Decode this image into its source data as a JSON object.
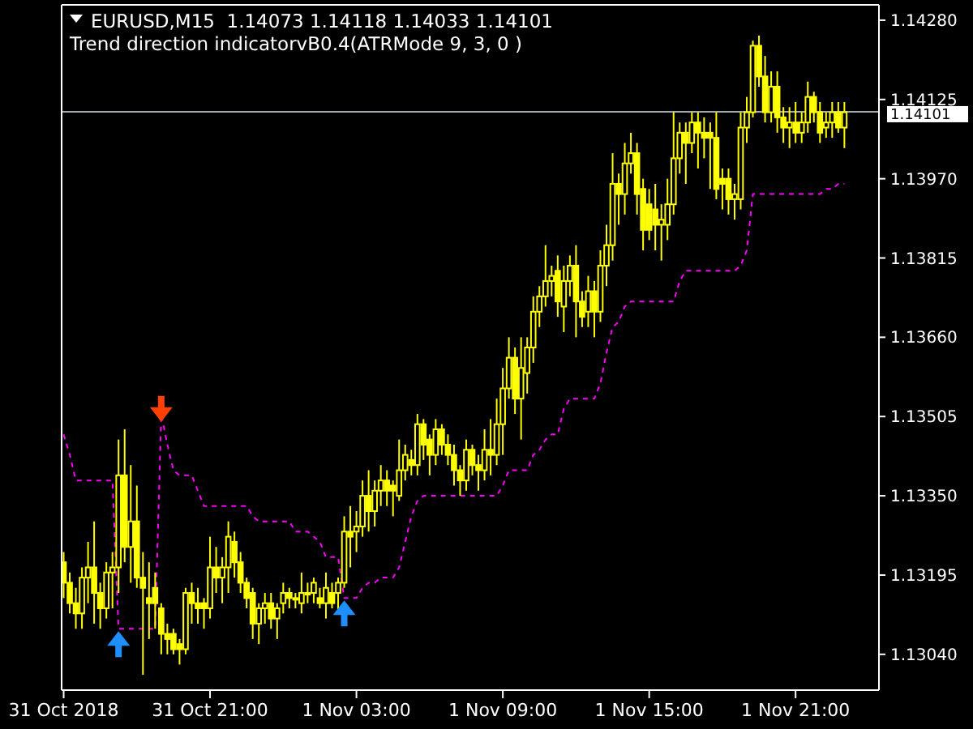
{
  "chart_data": {
    "type": "candlestick",
    "title": "EURUSD,M15  1.14073 1.14118 1.14033 1.14101",
    "subtitle": "Trend direction indicatorvB0.4(ATRMode 9, 3, 0 )",
    "color": "#ffff00",
    "x": [
      "2018-10-31T15:00",
      "2018-10-31T15:15",
      "2018-10-31T15:30",
      "2018-10-31T15:45",
      "2018-10-31T16:00",
      "2018-10-31T16:15",
      "2018-10-31T16:30",
      "2018-10-31T16:45",
      "2018-10-31T17:00",
      "2018-10-31T17:15",
      "2018-10-31T17:30",
      "2018-10-31T17:45",
      "2018-10-31T18:00",
      "2018-10-31T18:15",
      "2018-10-31T18:30",
      "2018-10-31T18:45",
      "2018-10-31T19:00",
      "2018-10-31T19:15",
      "2018-10-31T19:30",
      "2018-10-31T19:45",
      "2018-10-31T20:00",
      "2018-10-31T20:15",
      "2018-10-31T20:30",
      "2018-10-31T20:45",
      "2018-10-31T21:00",
      "2018-10-31T21:15",
      "2018-10-31T21:30",
      "2018-10-31T21:45",
      "2018-10-31T22:00",
      "2018-10-31T22:15",
      "2018-10-31T22:30",
      "2018-10-31T22:45",
      "2018-10-31T23:00",
      "2018-10-31T23:15",
      "2018-10-31T23:30",
      "2018-10-31T23:45",
      "2018-11-01T00:00",
      "2018-11-01T00:15",
      "2018-11-01T00:30",
      "2018-11-01T00:45",
      "2018-11-01T01:00",
      "2018-11-01T01:15",
      "2018-11-01T01:30",
      "2018-11-01T01:45",
      "2018-11-01T02:00",
      "2018-11-01T02:15",
      "2018-11-01T02:30",
      "2018-11-01T02:45",
      "2018-11-01T03:00",
      "2018-11-01T03:15",
      "2018-11-01T03:30",
      "2018-11-01T03:45",
      "2018-11-01T04:00",
      "2018-11-01T04:15",
      "2018-11-01T04:30",
      "2018-11-01T04:45",
      "2018-11-01T05:00",
      "2018-11-01T05:15",
      "2018-11-01T05:30",
      "2018-11-01T05:45",
      "2018-11-01T06:00",
      "2018-11-01T06:15",
      "2018-11-01T06:30",
      "2018-11-01T06:45",
      "2018-11-01T07:00",
      "2018-11-01T07:15",
      "2018-11-01T07:30",
      "2018-11-01T07:45",
      "2018-11-01T08:00",
      "2018-11-01T08:15",
      "2018-11-01T08:30",
      "2018-11-01T08:45",
      "2018-11-01T09:00",
      "2018-11-01T09:15",
      "2018-11-01T09:30",
      "2018-11-01T09:45",
      "2018-11-01T10:00",
      "2018-11-01T10:15",
      "2018-11-01T10:30",
      "2018-11-01T10:45",
      "2018-11-01T11:00",
      "2018-11-01T11:15",
      "2018-11-01T11:30",
      "2018-11-01T11:45",
      "2018-11-01T12:00",
      "2018-11-01T12:15",
      "2018-11-01T12:30",
      "2018-11-01T12:45",
      "2018-11-01T13:00",
      "2018-11-01T13:15",
      "2018-11-01T13:30",
      "2018-11-01T13:45",
      "2018-11-01T14:00",
      "2018-11-01T14:15",
      "2018-11-01T14:30",
      "2018-11-01T14:45",
      "2018-11-01T15:00",
      "2018-11-01T15:15",
      "2018-11-01T15:30",
      "2018-11-01T15:45",
      "2018-11-01T16:00",
      "2018-11-01T16:15",
      "2018-11-01T16:30",
      "2018-11-01T16:45",
      "2018-11-01T17:00",
      "2018-11-01T17:15",
      "2018-11-01T17:30",
      "2018-11-01T17:45",
      "2018-11-01T18:00",
      "2018-11-01T18:15",
      "2018-11-01T18:30",
      "2018-11-01T18:45",
      "2018-11-01T19:00",
      "2018-11-01T19:15",
      "2018-11-01T19:30",
      "2018-11-01T19:45",
      "2018-11-01T20:00",
      "2018-11-01T20:15",
      "2018-11-01T20:30",
      "2018-11-01T20:45",
      "2018-11-01T21:00",
      "2018-11-01T21:15",
      "2018-11-01T21:30",
      "2018-11-01T21:45",
      "2018-11-01T22:00",
      "2018-11-01T22:15",
      "2018-11-01T22:30",
      "2018-11-01T22:45",
      "2018-11-01T23:00"
    ],
    "ohlc": [
      [
        1.1322,
        1.1324,
        1.1315,
        1.1318
      ],
      [
        1.1318,
        1.132,
        1.1312,
        1.1314
      ],
      [
        1.1314,
        1.1317,
        1.1309,
        1.1312
      ],
      [
        1.1312,
        1.1321,
        1.1309,
        1.1319
      ],
      [
        1.1319,
        1.1326,
        1.1314,
        1.1321
      ],
      [
        1.1321,
        1.133,
        1.131,
        1.1316
      ],
      [
        1.1316,
        1.1318,
        1.1309,
        1.1313
      ],
      [
        1.1313,
        1.1322,
        1.1311,
        1.132
      ],
      [
        1.132,
        1.1324,
        1.1313,
        1.1321
      ],
      [
        1.1321,
        1.1346,
        1.1316,
        1.1339
      ],
      [
        1.1339,
        1.1348,
        1.1322,
        1.1325
      ],
      [
        1.1325,
        1.1341,
        1.1318,
        1.133
      ],
      [
        1.133,
        1.1337,
        1.1317,
        1.1319
      ],
      [
        1.1319,
        1.1324,
        1.13,
        1.1317
      ],
      [
        1.1315,
        1.1322,
        1.1307,
        1.1314
      ],
      [
        1.1317,
        1.132,
        1.1309,
        1.1314
      ],
      [
        1.1313,
        1.1314,
        1.1304,
        1.1308
      ],
      [
        1.1308,
        1.131,
        1.1304,
        1.1307
      ],
      [
        1.1308,
        1.1309,
        1.1304,
        1.1305
      ],
      [
        1.1306,
        1.1307,
        1.1302,
        1.1305
      ],
      [
        1.1305,
        1.1317,
        1.1304,
        1.1316
      ],
      [
        1.1316,
        1.1318,
        1.131,
        1.1314
      ],
      [
        1.1314,
        1.1317,
        1.131,
        1.1313
      ],
      [
        1.1314,
        1.1315,
        1.1309,
        1.1313
      ],
      [
        1.1313,
        1.1327,
        1.1311,
        1.1321
      ],
      [
        1.1321,
        1.1325,
        1.1316,
        1.1319
      ],
      [
        1.1319,
        1.1323,
        1.1314,
        1.1321
      ],
      [
        1.1321,
        1.133,
        1.1316,
        1.1327
      ],
      [
        1.1326,
        1.1328,
        1.1319,
        1.1322
      ],
      [
        1.1322,
        1.1324,
        1.1316,
        1.1318
      ],
      [
        1.1318,
        1.1319,
        1.1313,
        1.1315
      ],
      [
        1.1316,
        1.1317,
        1.1307,
        1.131
      ],
      [
        1.131,
        1.1314,
        1.1306,
        1.1313
      ],
      [
        1.1313,
        1.1316,
        1.131,
        1.1314
      ],
      [
        1.1314,
        1.1316,
        1.1309,
        1.1311
      ],
      [
        1.1311,
        1.1314,
        1.1307,
        1.1313
      ],
      [
        1.1314,
        1.1318,
        1.1312,
        1.1316
      ],
      [
        1.1316,
        1.1317,
        1.1313,
        1.1315
      ],
      [
        1.1315,
        1.1316,
        1.1313,
        1.1315
      ],
      [
        1.1314,
        1.132,
        1.1312,
        1.1316
      ],
      [
        1.1316,
        1.1318,
        1.1314,
        1.1316
      ],
      [
        1.1316,
        1.1319,
        1.1314,
        1.1318
      ],
      [
        1.1315,
        1.1317,
        1.1313,
        1.1314
      ],
      [
        1.1314,
        1.132,
        1.1311,
        1.1317
      ],
      [
        1.1316,
        1.1318,
        1.1313,
        1.1314
      ],
      [
        1.1316,
        1.1319,
        1.1312,
        1.1318
      ],
      [
        1.1318,
        1.1331,
        1.1317,
        1.1328
      ],
      [
        1.1328,
        1.1333,
        1.1321,
        1.1327
      ],
      [
        1.1328,
        1.1332,
        1.1324,
        1.1329
      ],
      [
        1.1329,
        1.1338,
        1.1327,
        1.1335
      ],
      [
        1.1335,
        1.134,
        1.1328,
        1.1332
      ],
      [
        1.1332,
        1.1338,
        1.1329,
        1.1336
      ],
      [
        1.1336,
        1.1341,
        1.1333,
        1.1338
      ],
      [
        1.1338,
        1.134,
        1.1333,
        1.1336
      ],
      [
        1.1337,
        1.1338,
        1.1331,
        1.1336
      ],
      [
        1.1335,
        1.1346,
        1.1334,
        1.134
      ],
      [
        1.134,
        1.1345,
        1.1338,
        1.1343
      ],
      [
        1.1342,
        1.1344,
        1.1339,
        1.1341
      ],
      [
        1.1341,
        1.1351,
        1.1339,
        1.1349
      ],
      [
        1.1349,
        1.135,
        1.1342,
        1.1345
      ],
      [
        1.1346,
        1.1347,
        1.1339,
        1.1343
      ],
      [
        1.1343,
        1.135,
        1.1341,
        1.1348
      ],
      [
        1.1348,
        1.1349,
        1.1343,
        1.1345
      ],
      [
        1.1345,
        1.1347,
        1.1341,
        1.1343
      ],
      [
        1.1343,
        1.1345,
        1.1337,
        1.134
      ],
      [
        1.134,
        1.1341,
        1.1335,
        1.1338
      ],
      [
        1.1338,
        1.1346,
        1.1336,
        1.1344
      ],
      [
        1.1344,
        1.1345,
        1.1339,
        1.1341
      ],
      [
        1.1341,
        1.1343,
        1.1336,
        1.134
      ],
      [
        1.134,
        1.1348,
        1.1338,
        1.1344
      ],
      [
        1.1344,
        1.135,
        1.1339,
        1.1343
      ],
      [
        1.1343,
        1.1354,
        1.1341,
        1.1349
      ],
      [
        1.1349,
        1.136,
        1.1343,
        1.1356
      ],
      [
        1.1356,
        1.1366,
        1.1354,
        1.1362
      ],
      [
        1.1362,
        1.1364,
        1.1351,
        1.1354
      ],
      [
        1.1354,
        1.1366,
        1.1346,
        1.136
      ],
      [
        1.1359,
        1.1366,
        1.1355,
        1.1364
      ],
      [
        1.1364,
        1.1374,
        1.1361,
        1.1371
      ],
      [
        1.1371,
        1.1376,
        1.1368,
        1.1374
      ],
      [
        1.1374,
        1.1384,
        1.1372,
        1.1377
      ],
      [
        1.1377,
        1.138,
        1.1374,
        1.1378
      ],
      [
        1.1379,
        1.1382,
        1.137,
        1.1373
      ],
      [
        1.1372,
        1.138,
        1.1367,
        1.1377
      ],
      [
        1.1377,
        1.1382,
        1.1374,
        1.138
      ],
      [
        1.138,
        1.1384,
        1.1366,
        1.1373
      ],
      [
        1.1373,
        1.1375,
        1.1368,
        1.137
      ],
      [
        1.1371,
        1.1378,
        1.1368,
        1.1375
      ],
      [
        1.1375,
        1.1377,
        1.1366,
        1.1371
      ],
      [
        1.1371,
        1.1383,
        1.1369,
        1.138
      ],
      [
        1.138,
        1.1388,
        1.1376,
        1.1384
      ],
      [
        1.1384,
        1.1402,
        1.1381,
        1.1396
      ],
      [
        1.1396,
        1.1398,
        1.1388,
        1.1394
      ],
      [
        1.1394,
        1.1404,
        1.139,
        1.14
      ],
      [
        1.14,
        1.1406,
        1.1398,
        1.1402
      ],
      [
        1.1402,
        1.1404,
        1.139,
        1.1394
      ],
      [
        1.1395,
        1.1397,
        1.1383,
        1.1387
      ],
      [
        1.1392,
        1.1395,
        1.1385,
        1.1387
      ],
      [
        1.1391,
        1.1396,
        1.1383,
        1.1388
      ],
      [
        1.1388,
        1.1392,
        1.1381,
        1.1389
      ],
      [
        1.1388,
        1.1397,
        1.1385,
        1.1392
      ],
      [
        1.1392,
        1.141,
        1.139,
        1.1401
      ],
      [
        1.1401,
        1.1408,
        1.1398,
        1.1406
      ],
      [
        1.1406,
        1.1408,
        1.1396,
        1.1404
      ],
      [
        1.1404,
        1.141,
        1.1402,
        1.1408
      ],
      [
        1.1408,
        1.141,
        1.1399,
        1.1406
      ],
      [
        1.1406,
        1.1409,
        1.1401,
        1.1405
      ],
      [
        1.1406,
        1.1408,
        1.1395,
        1.1405
      ],
      [
        1.1405,
        1.141,
        1.1393,
        1.1395
      ],
      [
        1.1397,
        1.1399,
        1.1391,
        1.1396
      ],
      [
        1.1397,
        1.1399,
        1.139,
        1.1393
      ],
      [
        1.1393,
        1.1396,
        1.1389,
        1.1394
      ],
      [
        1.1393,
        1.141,
        1.1391,
        1.1407
      ],
      [
        1.1407,
        1.1413,
        1.1404,
        1.141
      ],
      [
        1.141,
        1.1424,
        1.1409,
        1.1423
      ],
      [
        1.1423,
        1.1425,
        1.1415,
        1.1417
      ],
      [
        1.1417,
        1.1421,
        1.1408,
        1.141
      ],
      [
        1.141,
        1.1418,
        1.1408,
        1.1415
      ],
      [
        1.1415,
        1.1418,
        1.1406,
        1.1409
      ],
      [
        1.1409,
        1.1411,
        1.1404,
        1.1407
      ],
      [
        1.1407,
        1.1411,
        1.1403,
        1.1408
      ],
      [
        1.1408,
        1.1412,
        1.1404,
        1.1406
      ],
      [
        1.1406,
        1.141,
        1.1404,
        1.1408
      ],
      [
        1.1408,
        1.1416,
        1.1406,
        1.1413
      ],
      [
        1.1413,
        1.1414,
        1.1408,
        1.141
      ],
      [
        1.141,
        1.1412,
        1.1404,
        1.1406
      ],
      [
        1.1407,
        1.141,
        1.1405,
        1.1408
      ],
      [
        1.1408,
        1.1412,
        1.1405,
        1.141
      ],
      [
        1.141,
        1.1412,
        1.1406,
        1.1407
      ],
      [
        1.1407,
        1.1412,
        1.1403,
        1.141
      ]
    ],
    "series": [
      {
        "type": "line",
        "color": "#ff00ff",
        "line_style": "dashed",
        "values": [
          1.1347,
          1.1343,
          1.1338,
          1.1338,
          1.1338,
          1.1338,
          1.1338,
          1.1338,
          1.1338,
          1.1309,
          1.1309,
          1.1309,
          1.1309,
          1.1309,
          1.1309,
          1.1309,
          1.1351,
          1.1345,
          1.134,
          1.1339,
          1.1339,
          1.1339,
          1.1336,
          1.1333,
          1.1333,
          1.1333,
          1.1333,
          1.1333,
          1.1333,
          1.1333,
          1.1333,
          1.1331,
          1.133,
          1.133,
          1.133,
          1.133,
          1.133,
          1.133,
          1.1328,
          1.1328,
          1.1328,
          1.1327,
          1.1326,
          1.1323,
          1.1323,
          1.1323,
          1.1315,
          1.1315,
          1.1315,
          1.1317,
          1.1318,
          1.1318,
          1.1319,
          1.1319,
          1.1319,
          1.1321,
          1.1326,
          1.1331,
          1.1334,
          1.1335,
          1.1335,
          1.1335,
          1.1335,
          1.1335,
          1.1335,
          1.1335,
          1.1335,
          1.1335,
          1.1335,
          1.1335,
          1.1335,
          1.1335,
          1.1337,
          1.134,
          1.134,
          1.134,
          1.134,
          1.1343,
          1.1344,
          1.1346,
          1.1347,
          1.1347,
          1.1352,
          1.1354,
          1.1354,
          1.1354,
          1.1354,
          1.1354,
          1.1357,
          1.1363,
          1.1368,
          1.1369,
          1.1372,
          1.1373,
          1.1373,
          1.1373,
          1.1373,
          1.1373,
          1.1373,
          1.1373,
          1.1373,
          1.1377,
          1.1379,
          1.1379,
          1.1379,
          1.1379,
          1.1379,
          1.1379,
          1.1379,
          1.1379,
          1.1379,
          1.138,
          1.1383,
          1.1394,
          1.1394,
          1.1394,
          1.1394,
          1.1394,
          1.1394,
          1.1394,
          1.1394,
          1.1394,
          1.1394,
          1.1394,
          1.1394,
          1.1395,
          1.1395,
          1.1396,
          1.1396
        ]
      },
      {
        "type": "scatter",
        "color": "#1e8fff",
        "marker": "triangle",
        "x": [
          "2018-10-31T17:15",
          "2018-11-01T02:30"
        ],
        "values": [
          1.1306,
          1.1312
        ]
      },
      {
        "type": "scatter",
        "color": "#ff4000",
        "marker": "triangle",
        "x": [
          "2018-10-31T19:00"
        ],
        "values": [
          1.1352
        ]
      }
    ],
    "xlim": [
      "2018-10-31T14:55",
      "2018-11-02T00:25"
    ],
    "xticks": [
      {
        "value": "2018-10-31T15:00",
        "label": "31 Oct 2018"
      },
      {
        "value": "2018-10-31T21:00",
        "label": "31 Oct 21:00"
      },
      {
        "value": "2018-11-01T03:00",
        "label": "1 Nov 03:00"
      },
      {
        "value": "2018-11-01T09:00",
        "label": "1 Nov 09:00"
      },
      {
        "value": "2018-11-01T15:00",
        "label": "1 Nov 15:00"
      },
      {
        "value": "2018-11-01T21:00",
        "label": "1 Nov 21:00"
      }
    ],
    "ylim": [
      1.1297,
      1.1431
    ],
    "yticks": [
      {
        "value": 1.1304,
        "label": "1.13040"
      },
      {
        "value": 1.13195,
        "label": "1.13195"
      },
      {
        "value": 1.1335,
        "label": "1.13350"
      },
      {
        "value": 1.13505,
        "label": "1.13505"
      },
      {
        "value": 1.1366,
        "label": "1.13660"
      },
      {
        "value": 1.13815,
        "label": "1.13815"
      },
      {
        "value": 1.1397,
        "label": "1.13970"
      },
      {
        "value": 1.14125,
        "label": "1.14125"
      },
      {
        "value": 1.1428,
        "label": "1.14280"
      }
    ],
    "ref_lines": [
      {
        "axis": "y",
        "value": 1.14101,
        "label": "1.14101",
        "color": "#a0a8b0"
      }
    ]
  }
}
